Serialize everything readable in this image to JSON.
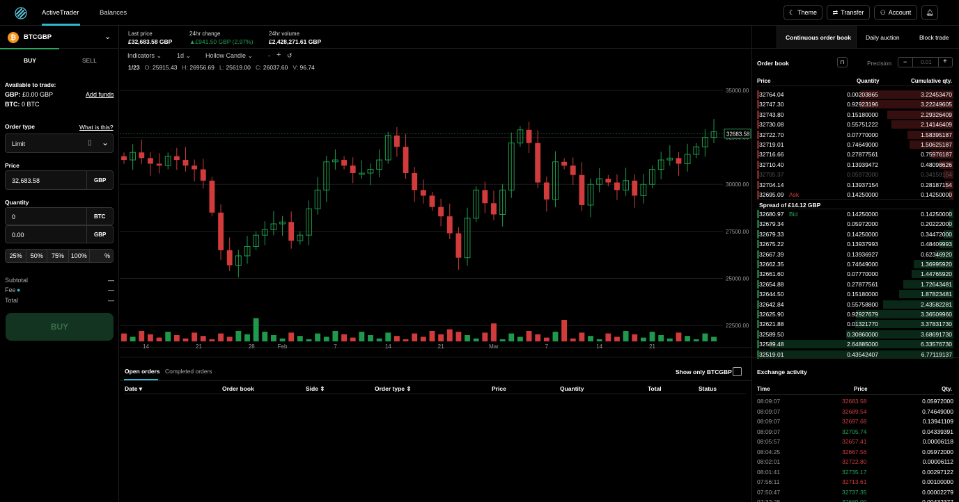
{
  "topbar": {
    "nav_active": "ActiveTrader",
    "nav_balances": "Balances",
    "theme": "Theme",
    "transfer": "Transfer",
    "account": "Account"
  },
  "pair": {
    "symbol": "BTCGBP"
  },
  "trade": {
    "buy_tab": "BUY",
    "sell_tab": "SELL",
    "available_title": "Available to trade:",
    "gbp_label": "GBP:",
    "gbp_value": "£0.00 GBP",
    "btc_label": "BTC:",
    "btc_value": "0 BTC",
    "add_funds": "Add funds",
    "order_type_label": "Order type",
    "what_is_this": "What is this?",
    "order_type_value": "Limit",
    "price_label": "Price",
    "price_value": "32,683.58",
    "price_unit": "GBP",
    "quantity_label": "Quantity",
    "qty_btc_value": "0",
    "qty_btc_unit": "BTC",
    "qty_gbp_value": "0.00",
    "qty_gbp_unit": "GBP",
    "pcts": [
      "25%",
      "50%",
      "75%",
      "100%",
      "%"
    ],
    "subtotal": "Subtotal",
    "fee": "Fee",
    "total": "Total",
    "dash": "—",
    "buy_button": "BUY"
  },
  "stats": {
    "last_price_k": "Last price",
    "last_price_v": "£32,683.58 GBP",
    "change_k": "24hr change",
    "change_v": "£941.50 GBP (2.97%)",
    "volume_k": "24hr volume",
    "volume_v": "£2,428,271.61 GBP"
  },
  "toolbar": {
    "indicators": "Indicators",
    "interval": "1d",
    "candle": "Hollow Candle",
    "minus": "-",
    "plus": "+"
  },
  "ohlc": {
    "date": "1/23",
    "o_label": "O:",
    "o": "25915.43",
    "h_label": "H:",
    "h": "26956.69",
    "l_label": "L:",
    "l": "25619.00",
    "c_label": "C:",
    "c": "26037.60",
    "v_label": "V:",
    "v": "96.74"
  },
  "chart_data": {
    "type": "candlestick",
    "y_ticks": [
      "35000.00",
      "32500.00",
      "30000.00",
      "27500.00",
      "25000.00",
      "22500.00"
    ],
    "y_tick_values": [
      35000,
      32500,
      30000,
      27500,
      25000,
      22500
    ],
    "ylim": [
      21500,
      35500
    ],
    "x_ticks": [
      "14",
      "21",
      "28",
      "Feb",
      "7",
      "14",
      "21",
      "Mar",
      "7",
      "14",
      "21"
    ],
    "x_tick_index": [
      5,
      17,
      29,
      36,
      48,
      60,
      72,
      84,
      96,
      108,
      120
    ],
    "last_price_label": "32683.58",
    "last_price": 32683.58,
    "up_color": "#1f9a4c",
    "down_color": "#d23b3b"
  },
  "orders": {
    "tab_open": "Open orders",
    "tab_completed": "Completed orders",
    "show_only": "Show only BTCGBP",
    "cols": [
      "Date",
      "Order book",
      "Side",
      "Order type",
      "Price",
      "Quantity",
      "Total",
      "Status"
    ]
  },
  "rtabs": {
    "cob": "Continuous order book",
    "daily": "Daily auction",
    "block": "Block trade"
  },
  "orderbook": {
    "title": "Order book",
    "precision_label": "Precision",
    "precision_value": "0.01",
    "minus": "−",
    "plus": "+",
    "col_price": "Price",
    "col_qty": "Quantity",
    "col_cum": "Cumulative qty.",
    "ask_tag": "Ask",
    "bid_tag": "Bid",
    "spread": "Spread of £14.12 GBP",
    "asks": [
      [
        "32764.04",
        "0.00203865",
        "3.22453470"
      ],
      [
        "32747.30",
        "0.92923196",
        "3.22249605"
      ],
      [
        "32743.80",
        "0.15180000",
        "2.29326409"
      ],
      [
        "32730.08",
        "0.55751222",
        "2.14146409"
      ],
      [
        "32722.70",
        "0.07770000",
        "1.58395187"
      ],
      [
        "32719.01",
        "0.74649000",
        "1.50625187"
      ],
      [
        "32716.66",
        "0.27877561",
        "0.75976187"
      ],
      [
        "32710.40",
        "0.13939472",
        "0.48098626"
      ],
      [
        "32705.37",
        "0.05972000",
        "0.34159154"
      ],
      [
        "32704.14",
        "0.13937154",
        "0.28187154"
      ],
      [
        "32695.09",
        "0.14250000",
        "0.14250000"
      ]
    ],
    "bids": [
      [
        "32680.97",
        "0.14250000",
        "0.14250000"
      ],
      [
        "32679.34",
        "0.05972000",
        "0.20222000"
      ],
      [
        "32679.33",
        "0.14250000",
        "0.34472000"
      ],
      [
        "32675.22",
        "0.13937993",
        "0.48409993"
      ],
      [
        "32667.39",
        "0.13936927",
        "0.62346920"
      ],
      [
        "32662.35",
        "0.74649000",
        "1.36995920"
      ],
      [
        "32661.60",
        "0.07770000",
        "1.44765920"
      ],
      [
        "32654.88",
        "0.27877561",
        "1.72643481"
      ],
      [
        "32644.50",
        "0.15180000",
        "1.87823481"
      ],
      [
        "32642.84",
        "0.55758800",
        "2.43582281"
      ],
      [
        "32625.90",
        "0.92927679",
        "3.36509960"
      ],
      [
        "32621.88",
        "0.01321770",
        "3.37831730"
      ],
      [
        "32589.50",
        "0.30860000",
        "3.68691730"
      ],
      [
        "32589.48",
        "2.64885000",
        "6.33576730"
      ],
      [
        "32519.01",
        "0.43542407",
        "6.77119137"
      ]
    ]
  },
  "activity": {
    "title": "Exchange activity",
    "col_time": "Time",
    "col_price": "Price",
    "col_qty": "Qty.",
    "rows": [
      [
        "08:09:07",
        "32683.58",
        "0.05972000",
        "sell"
      ],
      [
        "08:09:07",
        "32689.54",
        "0.74649000",
        "sell"
      ],
      [
        "08:09:07",
        "32697.68",
        "0.13941109",
        "sell"
      ],
      [
        "08:09:07",
        "32705.74",
        "0.04339391",
        "buy"
      ],
      [
        "08:05:57",
        "32657.41",
        "0.00006118",
        "sell"
      ],
      [
        "08:04:25",
        "32667.56",
        "0.05972000",
        "sell"
      ],
      [
        "08:02:01",
        "32722.80",
        "0.00006112",
        "sell"
      ],
      [
        "08:01:41",
        "32735.17",
        "0.00297122",
        "buy"
      ],
      [
        "07:56:11",
        "32713.61",
        "0.00100000",
        "sell"
      ],
      [
        "07:50:47",
        "32737.35",
        "0.00002279",
        "buy"
      ],
      [
        "07:32:28",
        "32689.00",
        "0.00432377",
        "buy"
      ]
    ]
  }
}
